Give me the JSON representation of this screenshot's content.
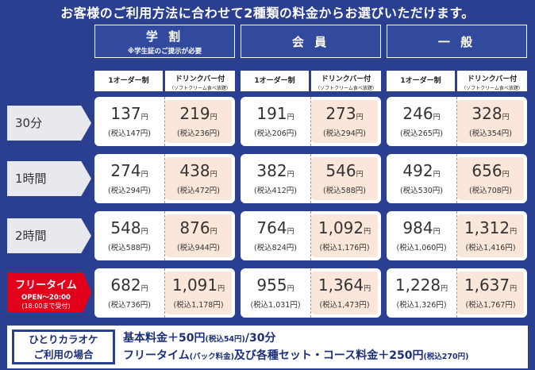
{
  "headline": "お客様のご利用方法に合わせて2種類の料金からお選びいただけます。",
  "plans": [
    {
      "name": "学 割",
      "note": "※学生証のご提示が必要"
    },
    {
      "name": "会 員",
      "note": ""
    },
    {
      "name": "一 般",
      "note": ""
    }
  ],
  "subheads": {
    "order": "1オーダー制",
    "drink": "ドリンクバー付",
    "drink_note": "（ソフトクリーム食べ放題）"
  },
  "yen": "円",
  "rows": [
    {
      "label": "30分",
      "prices": [
        [
          "137",
          "(税込147円)"
        ],
        [
          "219",
          "(税込236円)"
        ],
        [
          "191",
          "(税込206円)"
        ],
        [
          "273",
          "(税込294円)"
        ],
        [
          "246",
          "(税込265円)"
        ],
        [
          "328",
          "(税込354円)"
        ]
      ]
    },
    {
      "label": "1時間",
      "prices": [
        [
          "274",
          "(税込294円)"
        ],
        [
          "438",
          "(税込472円)"
        ],
        [
          "382",
          "(税込412円)"
        ],
        [
          "546",
          "(税込588円)"
        ],
        [
          "492",
          "(税込530円)"
        ],
        [
          "656",
          "(税込708円)"
        ]
      ]
    },
    {
      "label": "2時間",
      "prices": [
        [
          "548",
          "(税込588円)"
        ],
        [
          "876",
          "(税込944円)"
        ],
        [
          "764",
          "(税込824円)"
        ],
        [
          "1,092",
          "(税込1,176円)"
        ],
        [
          "984",
          "(税込1,060円)"
        ],
        [
          "1,312",
          "(税込1,416円)"
        ]
      ]
    },
    {
      "label": "フリータイム",
      "sub1": "OPEN～20:00",
      "sub2": "(18:00まで受付)",
      "prices": [
        [
          "682",
          "(税込736円)"
        ],
        [
          "1,091",
          "(税込1,178円)"
        ],
        [
          "955",
          "(税込1,031円)"
        ],
        [
          "1,364",
          "(税込1,473円)"
        ],
        [
          "1,228",
          "(税込1,326円)"
        ],
        [
          "1,637",
          "(税込1,767円)"
        ]
      ]
    }
  ],
  "solo": {
    "label_line1": "ひとりカラオケ",
    "label_line2": "ご利用の場合",
    "line1_main": "基本料金＋50円",
    "line1_small": "(税込54円)",
    "line1_end": "/30分",
    "line2_a": "フリータイム",
    "line2_small1": "(パック料金)",
    "line2_b": "及び各種セット・コース料金＋250円",
    "line2_small2": "(税込270円)"
  },
  "colors": {
    "background": "#2a3f8f",
    "drink_cell": "#fbe7da",
    "free_time": "#e2001b"
  }
}
